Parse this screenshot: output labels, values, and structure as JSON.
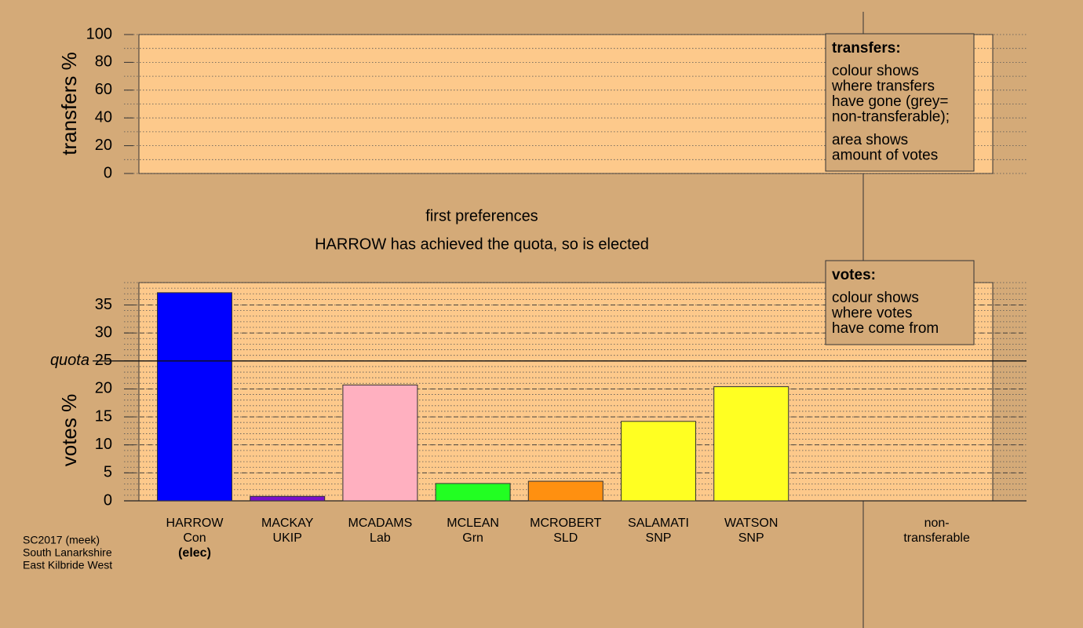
{
  "chart_data": [
    {
      "type": "bar",
      "ylabel": "transfers %",
      "ylim": [
        0,
        100
      ],
      "yticks": [
        0,
        20,
        40,
        60,
        80,
        100
      ],
      "minor_tick_step": 10,
      "grid_style": "dotted",
      "legend": {
        "title": "transfers:",
        "paragraphs": [
          [
            "colour shows",
            "where transfers",
            "have gone (grey=",
            "non-transferable);"
          ],
          [
            "area shows",
            "amount of votes"
          ]
        ]
      }
    },
    {
      "type": "bar",
      "title": "first preferences",
      "subtitle": "HARROW has achieved the quota, so is elected",
      "ylabel": "votes %",
      "ylim": [
        0,
        39
      ],
      "yticks": [
        0,
        5,
        10,
        15,
        20,
        25,
        30,
        35
      ],
      "minor_tick_step": 1,
      "grid_style": "dashed",
      "quota": {
        "value": 25,
        "label": "quota"
      },
      "categories": [
        "HARROW",
        "MACKAY",
        "MCADAMS",
        "MCLEAN",
        "MCROBERT",
        "SALAMATI",
        "WATSON"
      ],
      "parties": [
        "Con",
        "UKIP",
        "Lab",
        "Grn",
        "SLD",
        "SNP",
        "SNP"
      ],
      "notes": [
        "(elec)",
        null,
        null,
        null,
        null,
        null,
        null
      ],
      "values": [
        37.2,
        0.8,
        20.7,
        3.1,
        3.5,
        14.2,
        20.4
      ],
      "colors": [
        "#0000ff",
        "#7a10c8",
        "#ffb0c0",
        "#22ff22",
        "#ff9010",
        "#ffff22",
        "#ffff22"
      ],
      "extra_category": [
        "non-",
        "transferable"
      ],
      "legend": {
        "title": "votes:",
        "paragraphs": [
          [
            "colour shows",
            "where votes",
            "have come from"
          ]
        ]
      }
    }
  ],
  "footer": [
    "SC2017 (meek)",
    "South Lanarkshire",
    "East Kilbride West"
  ]
}
